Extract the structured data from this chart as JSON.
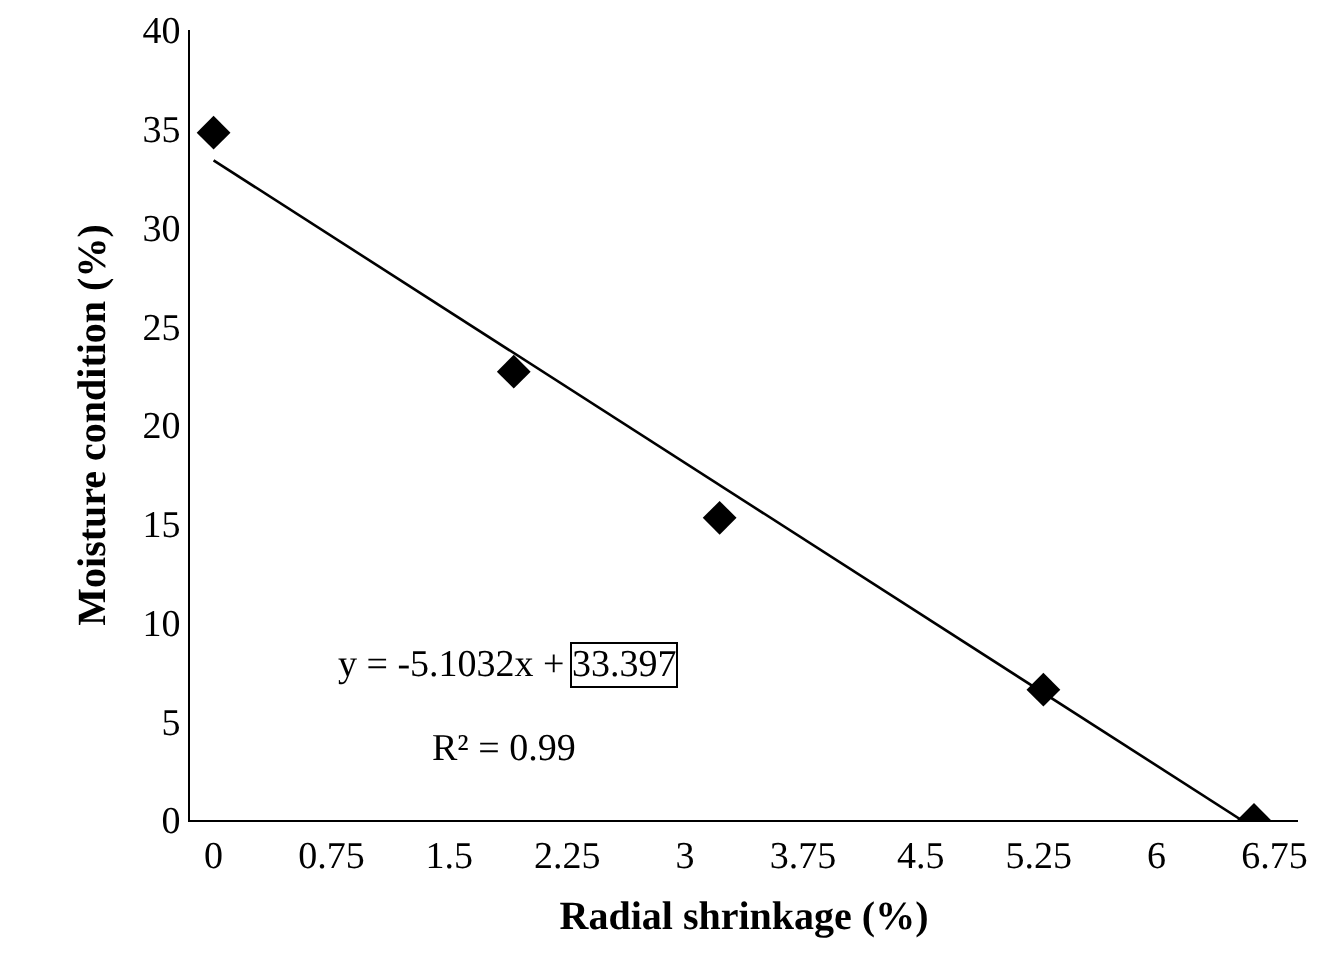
{
  "chart_data": {
    "type": "scatter",
    "xlabel": "Radial shrinkage (%)",
    "ylabel": "Moisture condition (%)",
    "x": [
      0,
      1.91,
      3.22,
      5.28,
      6.62
    ],
    "series": [
      {
        "color": "#000000",
        "marker": "diamond",
        "values": [
          34.8,
          22.7,
          15.3,
          6.6,
          0
        ]
      },
      {
        "type": "line",
        "color": "#000000",
        "x": [
          0,
          6.54
        ],
        "values": [
          33.4,
          0
        ],
        "marker": "none",
        "line_style": "solid"
      }
    ],
    "xlim": [
      -0.15,
      6.9
    ],
    "xticks": [
      0,
      0.75,
      1.5,
      2.25,
      3,
      3.75,
      4.5,
      5.25,
      6,
      6.75
    ],
    "ylim": [
      0,
      40
    ],
    "yticks": [
      0,
      5,
      10,
      15,
      20,
      25,
      30,
      35,
      40
    ],
    "grid": false,
    "annotations": [
      "y = -5.1032x +",
      "33.397",
      "R² = 0.99"
    ]
  }
}
